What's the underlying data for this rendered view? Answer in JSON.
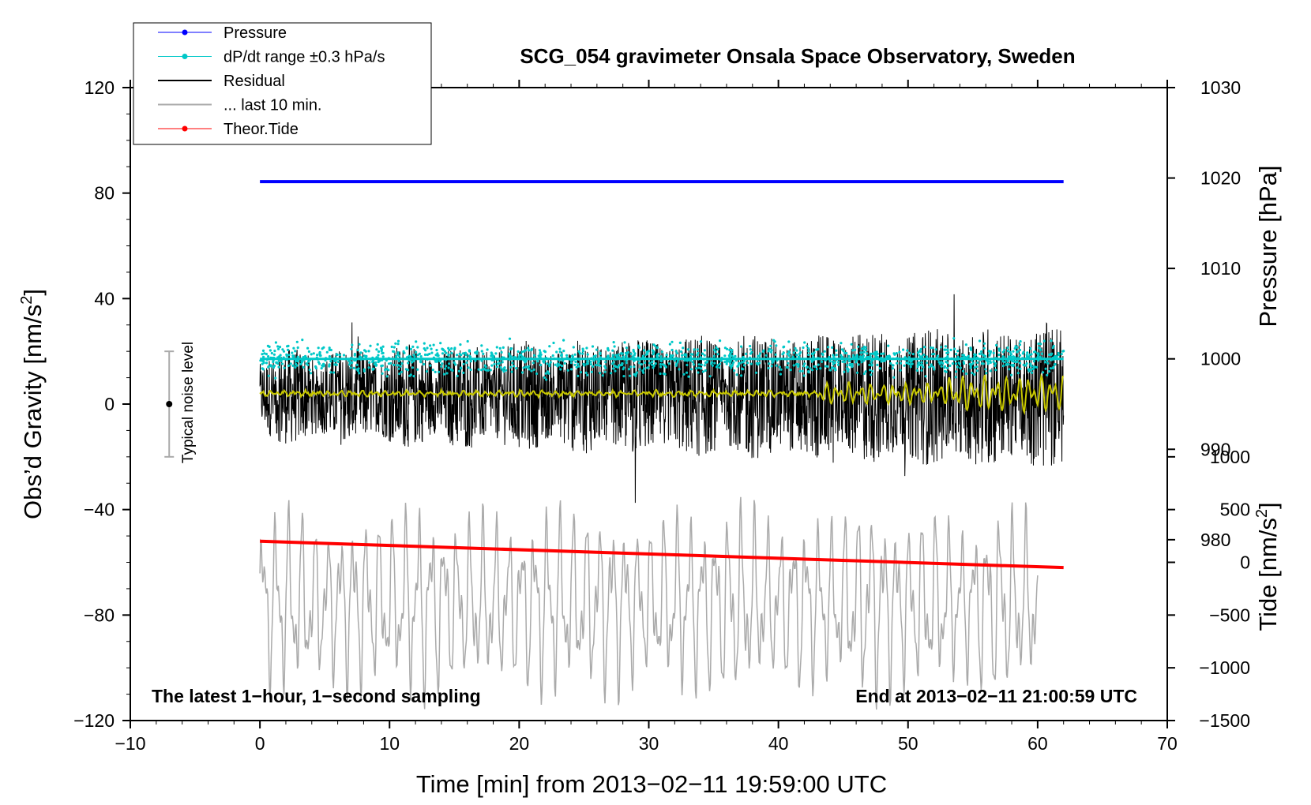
{
  "chart_data": {
    "type": "line",
    "title": "SCG_054 gravimeter Onsala Space Observatory, Sweden",
    "xlabel": "Time [min] from 2013−02−11 19:59:00 UTC",
    "ylabel_left": "Obs’d Gravity [nm/s",
    "ylabel_left_sup": "2",
    "ylabel_left_close": "]",
    "ylabel_right_top": "Pressure [hPa]",
    "ylabel_right_bottom": "Tide [nm/s",
    "ylabel_right_bottom_sup": "2",
    "ylabel_right_bottom_close": "]",
    "xlim": [
      -10,
      70
    ],
    "ylim_left": [
      -120,
      120
    ],
    "ylim_pressure": [
      960,
      1030
    ],
    "ylim_tide": [
      -1500,
      4500
    ],
    "x_ticks": [
      "−10",
      "0",
      "10",
      "20",
      "30",
      "40",
      "50",
      "60",
      "70"
    ],
    "x_tick_values": [
      -10,
      0,
      10,
      20,
      30,
      40,
      50,
      60,
      70
    ],
    "y_left_ticks": [
      "−120",
      "−80",
      "−40",
      "0",
      "40",
      "80",
      "120"
    ],
    "y_left_tick_values": [
      -120,
      -80,
      -40,
      0,
      40,
      80,
      120
    ],
    "y_pressure_ticks": [
      "980",
      "990",
      "1000",
      "1010",
      "1020",
      "1030"
    ],
    "y_pressure_tick_values": [
      980,
      990,
      1000,
      1010,
      1020,
      1030
    ],
    "y_tide_ticks": [
      "−1500",
      "−1000",
      "−500",
      "0",
      "500",
      "1000"
    ],
    "y_tide_tick_values": [
      -1500,
      -1000,
      -500,
      0,
      500,
      1000
    ],
    "legend": {
      "position": "top-left",
      "entries": [
        {
          "label": "Pressure",
          "color": "#0000ff",
          "style": "line-dot"
        },
        {
          "label": "dP/dt range ±0.3 hPa/s",
          "color": "#00c8c8",
          "style": "line-dot"
        },
        {
          "label": "Residual",
          "color": "#000000",
          "style": "line"
        },
        {
          "label": "... last 10 min.",
          "color": "#aaaaaa",
          "style": "line"
        },
        {
          "label": "Theor.Tide",
          "color": "#ff0000",
          "style": "line-dot"
        }
      ]
    },
    "series": [
      {
        "name": "Pressure",
        "axis": "pressure",
        "color": "#0000ff",
        "x": [
          0,
          62
        ],
        "y": [
          1019.6,
          1019.6
        ]
      },
      {
        "name": "dP/dt range ±0.3 hPa/s",
        "axis": "pressure",
        "color": "#00c8c8",
        "x": [
          0,
          62
        ],
        "y": [
          1000,
          1000
        ],
        "spread": 2.5
      },
      {
        "name": "Residual",
        "axis": "left",
        "color": "#000000",
        "x": [
          0,
          62
        ],
        "y_center": 3,
        "y_range": [
          -47,
          48
        ]
      },
      {
        "name": "Residual smoothed",
        "axis": "left",
        "color": "#c8c800",
        "x": [
          0,
          62
        ],
        "y_center": 4
      },
      {
        "name": "... last 10 min.",
        "axis": "left",
        "color": "#aaaaaa",
        "x": [
          0,
          60
        ],
        "y_range": [
          -120,
          -31
        ]
      },
      {
        "name": "Theor.Tide",
        "axis": "tide",
        "color": "#ff0000",
        "x": [
          0,
          62
        ],
        "y": [
          200,
          -50
        ]
      }
    ],
    "noise_bar": {
      "label": "Typical noise level",
      "x": -7,
      "y": 0,
      "low": -20,
      "high": 20
    },
    "annotation_left": "The latest 1−hour, 1−second sampling",
    "annotation_right": "End at 2013−02−11 21:00:59 UTC"
  }
}
